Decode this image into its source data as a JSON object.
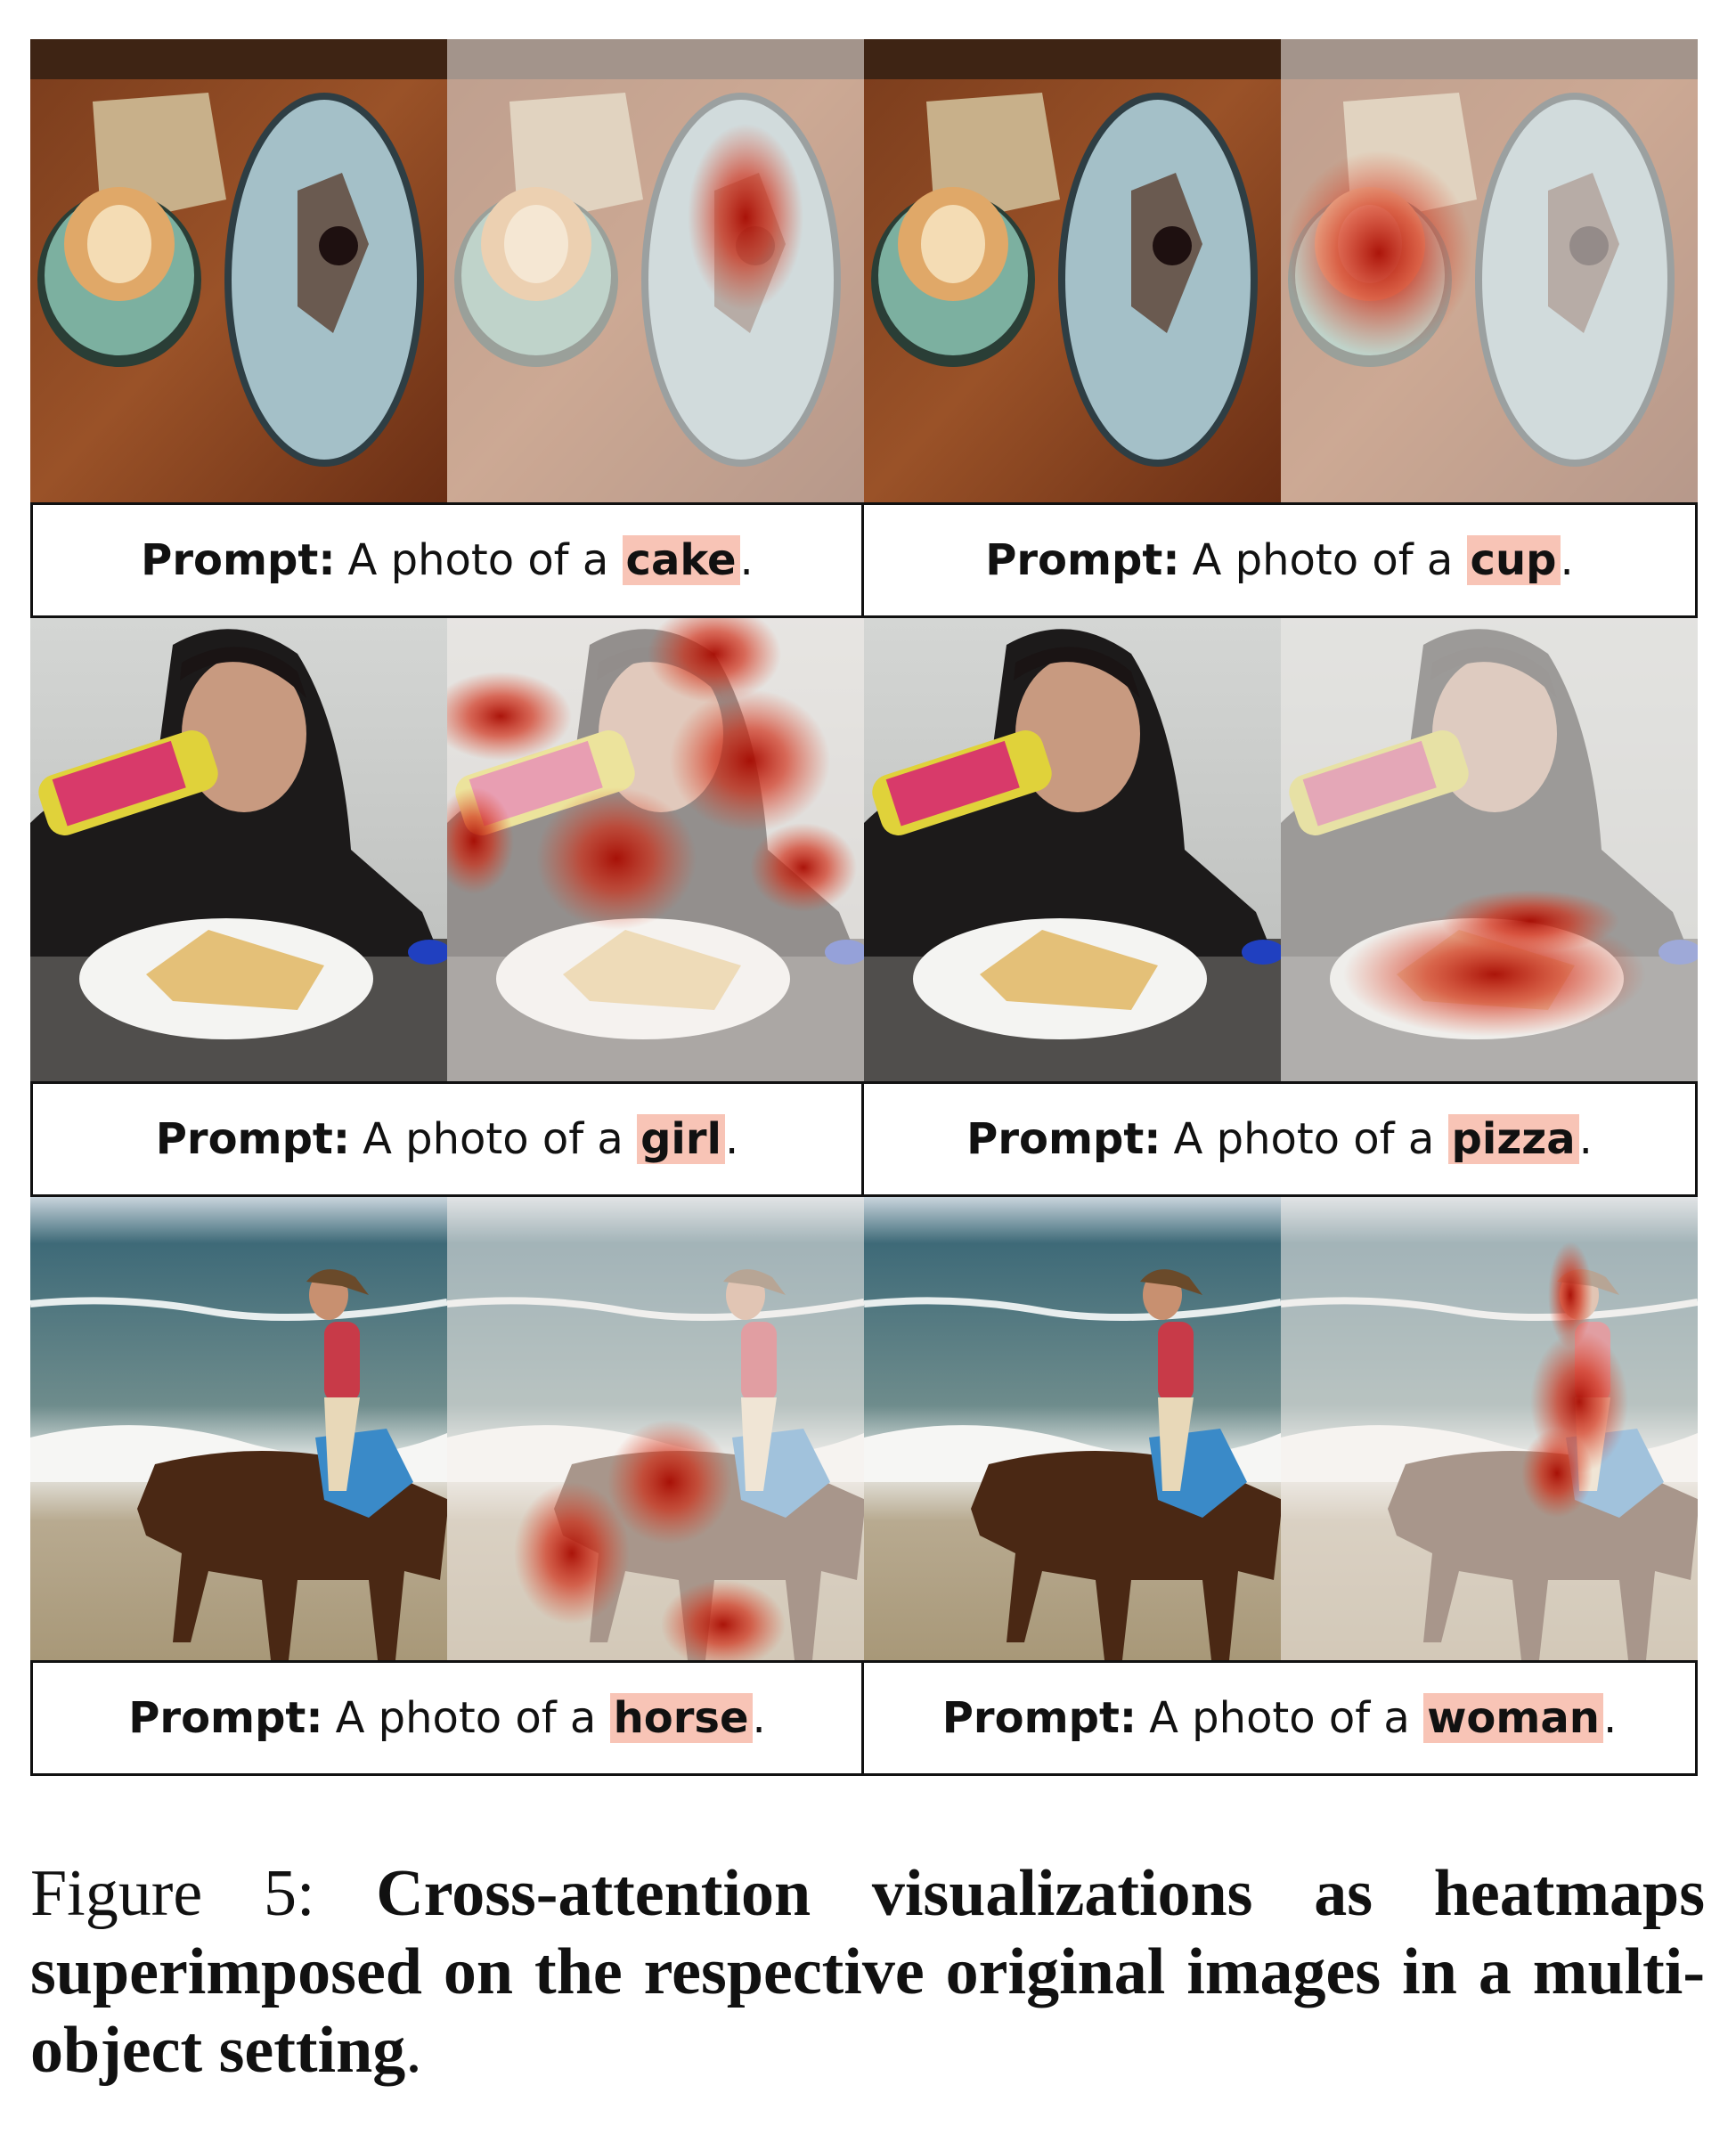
{
  "figure": {
    "rows": [
      {
        "left": {
          "label": "Prompt:",
          "prefix": "A photo of a",
          "token": "cake",
          "suffix": "."
        },
        "right": {
          "label": "Prompt:",
          "prefix": "A photo of a",
          "token": "cup",
          "suffix": "."
        }
      },
      {
        "left": {
          "label": "Prompt:",
          "prefix": "A photo of a",
          "token": "girl",
          "suffix": "."
        },
        "right": {
          "label": "Prompt:",
          "prefix": "A photo of a",
          "token": "pizza",
          "suffix": "."
        }
      },
      {
        "left": {
          "label": "Prompt:",
          "prefix": "A photo of a",
          "token": "horse",
          "suffix": "."
        },
        "right": {
          "label": "Prompt:",
          "prefix": "A photo of a",
          "token": "woman",
          "suffix": "."
        }
      }
    ]
  },
  "caption": {
    "label": "Figure 5:",
    "text": "Cross-attention visualizations as heatmaps superimposed on the respective original images in a multi-object setting",
    "end": "."
  },
  "colors": {
    "highlight": "#f8c4b6",
    "heat": "#c81e0a"
  }
}
